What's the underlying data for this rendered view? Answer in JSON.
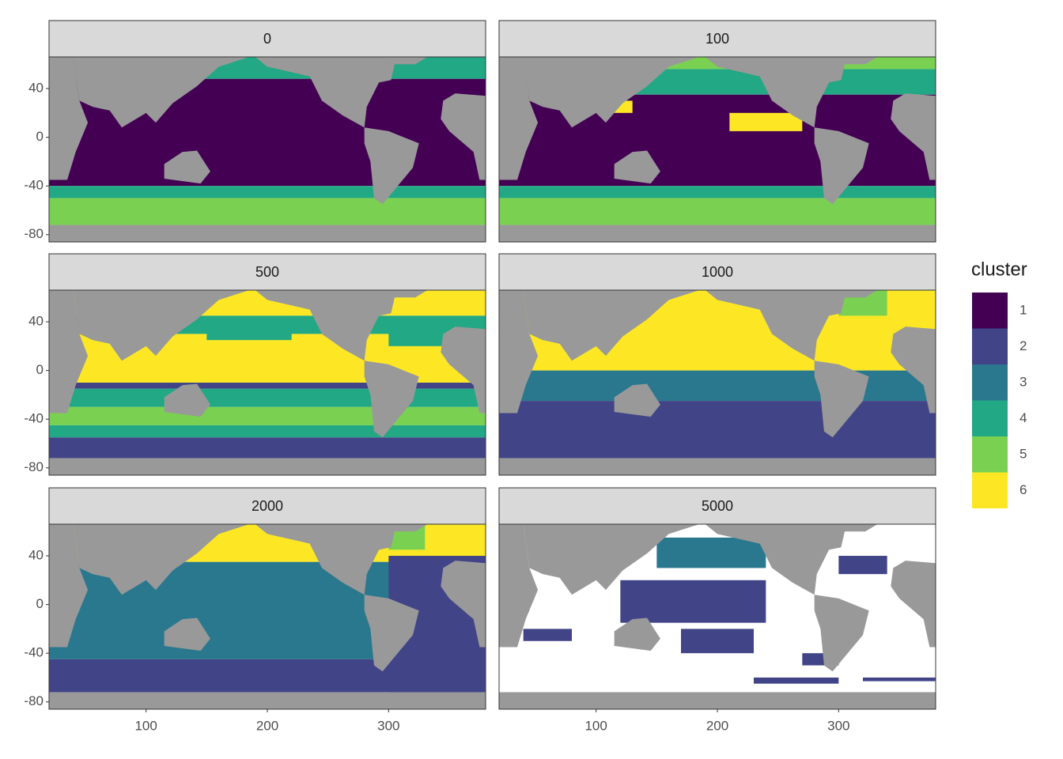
{
  "chart_data": {
    "type": "raster-map",
    "facets": [
      "0",
      "100",
      "500",
      "1000",
      "2000",
      "5000"
    ],
    "xlim": [
      20,
      380
    ],
    "ylim": [
      -86,
      66
    ],
    "xticks": [
      100,
      200,
      300
    ],
    "yticks": [
      40,
      0,
      -40,
      -80
    ],
    "land_color": "#999999",
    "legend": {
      "title": "cluster",
      "items": [
        {
          "name": "1",
          "color": "#440154"
        },
        {
          "name": "2",
          "color": "#414487"
        },
        {
          "name": "3",
          "color": "#2A788E"
        },
        {
          "name": "4",
          "color": "#22A884"
        },
        {
          "name": "5",
          "color": "#7AD151"
        },
        {
          "name": "6",
          "color": "#FDE725"
        }
      ]
    }
  }
}
